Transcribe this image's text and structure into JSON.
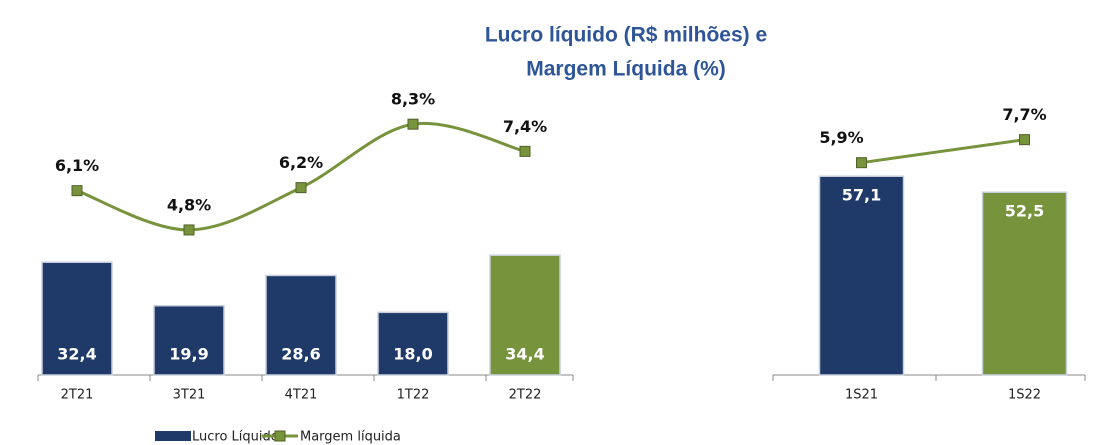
{
  "chart_data": [
    {
      "type": "bar-line",
      "title": [
        "Lucro líquido (R$ milhões) e",
        "Margem Líquida (%)"
      ],
      "categories": [
        "2T21",
        "3T21",
        "4T21",
        "1T22",
        "2T22"
      ],
      "ylim": [
        0,
        79
      ],
      "y2lim": [
        0,
        9.1
      ],
      "series": [
        {
          "name": "Lucro Líquido",
          "type": "bar",
          "color": "#1f3a68",
          "colors": [
            "#1f3a68",
            "#1f3a68",
            "#1f3a68",
            "#1f3a68",
            "#77933c"
          ],
          "values": [
            32.4,
            19.9,
            28.6,
            18.0,
            34.4
          ],
          "value_labels": [
            "32,4",
            "19,9",
            "28,6",
            "18,0",
            "34,4"
          ]
        },
        {
          "name": "Margem líquida",
          "type": "line",
          "axis": "y2",
          "color": "#77933c",
          "smooth": true,
          "values": [
            6.1,
            4.8,
            6.2,
            8.3,
            7.4
          ],
          "value_labels": [
            "6,1%",
            "4,8%",
            "6,2%",
            "8,3%",
            "7,4%"
          ]
        }
      ]
    },
    {
      "type": "bar-line",
      "categories": [
        "1S21",
        "1S22"
      ],
      "ylim": [
        0,
        79
      ],
      "y2lim": [
        -10.7,
        10.8
      ],
      "series": [
        {
          "type": "bar",
          "colors": [
            "#1f3a68",
            "#77933c"
          ],
          "values": [
            57.1,
            52.5
          ],
          "value_labels": [
            "57,1",
            "52,5"
          ]
        },
        {
          "type": "line",
          "axis": "y2",
          "color": "#77933c",
          "values": [
            5.9,
            7.7
          ],
          "value_labels": [
            "5,9%",
            "7,7%"
          ]
        }
      ]
    }
  ]
}
